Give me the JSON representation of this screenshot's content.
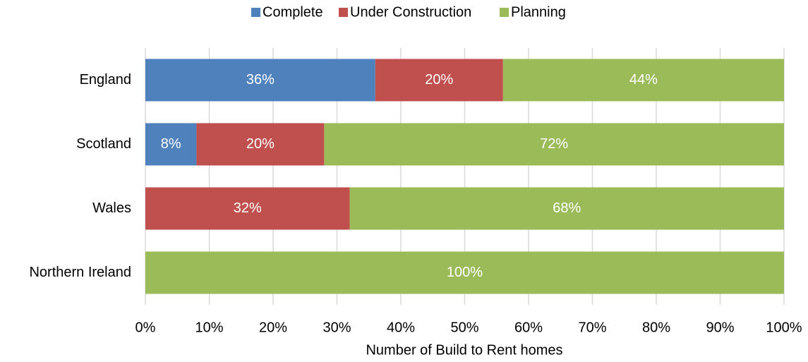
{
  "chart_data": {
    "type": "stacked_barh",
    "x_label": "Number of Build to Rent homes",
    "categories": [
      "England",
      "Scotland",
      "Wales",
      "Northern Ireland"
    ],
    "series": [
      {
        "name": "Complete",
        "color": "#4f81bd",
        "values": [
          36,
          8,
          0,
          0
        ],
        "value_labels": [
          "36%",
          "8%",
          null,
          null
        ]
      },
      {
        "name": "Under Construction",
        "color": "#c0504d",
        "values": [
          20,
          20,
          32,
          0
        ],
        "value_labels": [
          "20%",
          "20%",
          "32%",
          null
        ]
      },
      {
        "name": "Planning",
        "color": "#9bbb59",
        "values": [
          44,
          72,
          68,
          100
        ],
        "value_labels": [
          "44%",
          "72%",
          "68%",
          "100%"
        ]
      }
    ],
    "xlim": [
      0,
      100
    ],
    "xticks": [
      {
        "value": 0,
        "label": "0%"
      },
      {
        "value": 10,
        "label": "10%"
      },
      {
        "value": 20,
        "label": "20%"
      },
      {
        "value": 30,
        "label": "30%"
      },
      {
        "value": 40,
        "label": "40%"
      },
      {
        "value": 50,
        "label": "50%"
      },
      {
        "value": 60,
        "label": "60%"
      },
      {
        "value": 70,
        "label": "70%"
      },
      {
        "value": 80,
        "label": "80%"
      },
      {
        "value": 90,
        "label": "90%"
      },
      {
        "value": 100,
        "label": "100%"
      }
    ],
    "grid": true,
    "legend": "top"
  }
}
